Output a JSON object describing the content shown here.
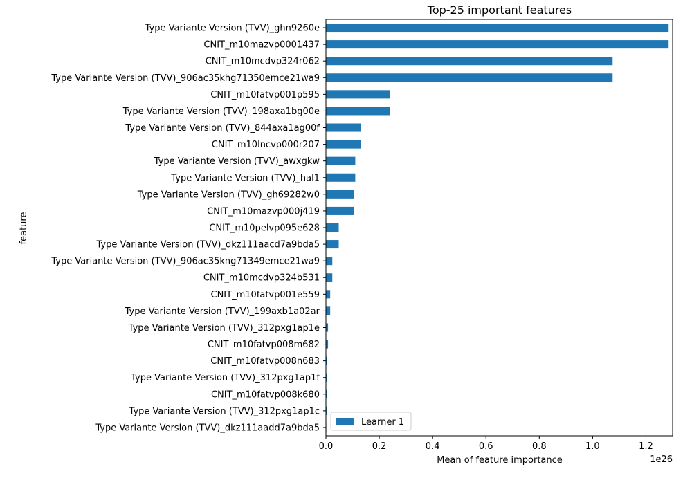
{
  "chart_data": {
    "type": "bar",
    "orientation": "horizontal",
    "title": "Top-25 important features",
    "xlabel": "Mean of feature importance",
    "ylabel": "feature",
    "x_offset_text": "1e26",
    "xlim": [
      0,
      1.3
    ],
    "x_scale_note": "values in units of 1e26",
    "xticks": [
      0.0,
      0.2,
      0.4,
      0.6,
      0.8,
      1.0,
      1.2
    ],
    "xtick_labels": [
      "0.0",
      "0.2",
      "0.4",
      "0.6",
      "0.8",
      "1.0",
      "1.2"
    ],
    "grid": false,
    "legend": {
      "position": "lower-left",
      "entries": [
        "Learner 1"
      ]
    },
    "categories": [
      "Type Variante Version (TVV)_ghn9260e",
      "CNIT_m10mazvp0001437",
      "CNIT_m10mcdvp324r062",
      "Type Variante Version (TVV)_906ac35khg71350emce21wa9",
      "CNIT_m10fatvp001p595",
      "Type Variante Version (TVV)_198axa1bg00e",
      "Type Variante Version (TVV)_844axa1ag00f",
      "CNIT_m10lncvp000r207",
      "Type Variante Version (TVV)_awxgkw",
      "Type Variante Version (TVV)_hal1",
      "Type Variante Version (TVV)_gh69282w0",
      "CNIT_m10mazvp000j419",
      "CNIT_m10pelvp095e628",
      "Type Variante Version (TVV)_dkz111aacd7a9bda5",
      "Type Variante Version (TVV)_906ac35kng71349emce21wa9",
      "CNIT_m10mcdvp324b531",
      "CNIT_m10fatvp001e559",
      "Type Variante Version (TVV)_199axb1a02ar",
      "Type Variante Version (TVV)_312pxg1ap1e",
      "CNIT_m10fatvp008m682",
      "CNIT_m10fatvp008n683",
      "Type Variante Version (TVV)_312pxg1ap1f",
      "CNIT_m10fatvp008k680",
      "Type Variante Version (TVV)_312pxg1ap1c",
      "Type Variante Version (TVV)_dkz111aadd7a9bda5"
    ],
    "series": [
      {
        "name": "Learner 1",
        "color": "#1f77b4",
        "values": [
          1.285,
          1.285,
          1.075,
          1.075,
          0.24,
          0.24,
          0.13,
          0.13,
          0.11,
          0.11,
          0.105,
          0.105,
          0.048,
          0.048,
          0.024,
          0.024,
          0.016,
          0.016,
          0.008,
          0.008,
          0.004,
          0.004,
          0.003,
          0.003,
          0.001
        ]
      }
    ]
  }
}
